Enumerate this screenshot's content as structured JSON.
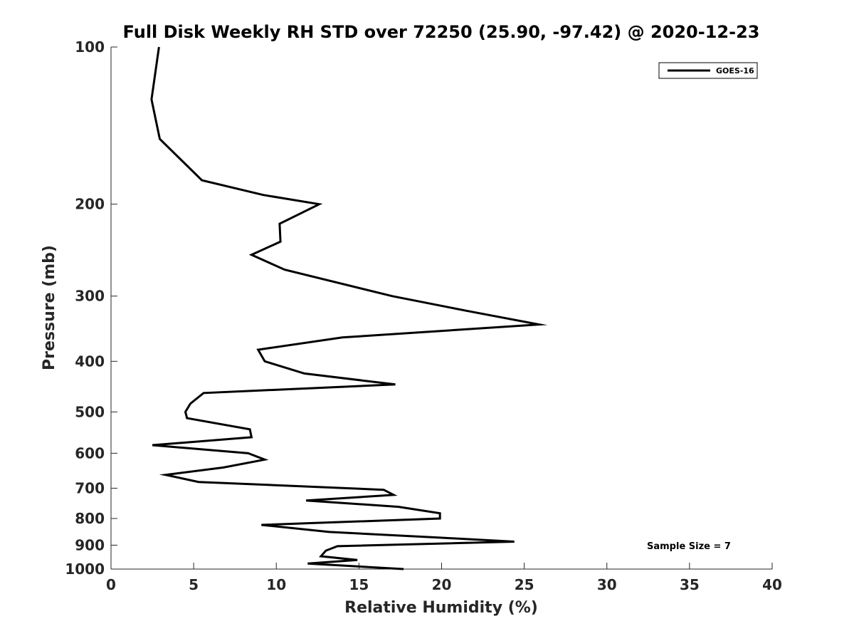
{
  "chart_data": {
    "type": "line",
    "title": "Full Disk Weekly RH STD over 72250 (25.90, -97.42) @ 2020-12-23",
    "xlabel": "Relative Humidity (%)",
    "ylabel": "Pressure (mb)",
    "xlim": [
      0,
      40
    ],
    "ylim": [
      100,
      1000
    ],
    "y_scale": "log",
    "y_reversed": true,
    "x_ticks": [
      0,
      5,
      10,
      15,
      20,
      25,
      30,
      35,
      40
    ],
    "y_ticks": [
      100,
      200,
      300,
      400,
      500,
      600,
      700,
      800,
      900,
      1000
    ],
    "grid": false,
    "legend": {
      "position": "top-right",
      "entries": [
        "GOES-16"
      ]
    },
    "annotation": "Sample Size = 7",
    "series": [
      {
        "name": "GOES-16",
        "color": "#000000",
        "points": [
          [
            2.9,
            100
          ],
          [
            2.45,
            126
          ],
          [
            2.95,
            150
          ],
          [
            5.5,
            180
          ],
          [
            9.2,
            192
          ],
          [
            12.6,
            200
          ],
          [
            10.2,
            218
          ],
          [
            10.25,
            236
          ],
          [
            8.5,
            250
          ],
          [
            10.5,
            267
          ],
          [
            17.0,
            300
          ],
          [
            21.5,
            320
          ],
          [
            25.9,
            340
          ],
          [
            14.0,
            360
          ],
          [
            8.9,
            380
          ],
          [
            9.3,
            400
          ],
          [
            11.7,
            422
          ],
          [
            17.2,
            443
          ],
          [
            5.6,
            460
          ],
          [
            4.8,
            482
          ],
          [
            4.5,
            500
          ],
          [
            4.6,
            514
          ],
          [
            8.4,
            540
          ],
          [
            8.5,
            559
          ],
          [
            2.5,
            579
          ],
          [
            8.3,
            600
          ],
          [
            9.3,
            617
          ],
          [
            6.8,
            639
          ],
          [
            3.3,
            660
          ],
          [
            5.3,
            681
          ],
          [
            16.5,
            705
          ],
          [
            17.1,
            721
          ],
          [
            11.8,
            739
          ],
          [
            17.4,
            760
          ],
          [
            19.9,
            782
          ],
          [
            19.9,
            800
          ],
          [
            9.1,
            823
          ],
          [
            13.2,
            849
          ],
          [
            20.0,
            871
          ],
          [
            24.4,
            886
          ],
          [
            13.7,
            904
          ],
          [
            13.0,
            922
          ],
          [
            12.7,
            945
          ],
          [
            14.9,
            961
          ],
          [
            11.9,
            976
          ],
          [
            17.7,
            1000
          ]
        ]
      }
    ]
  }
}
